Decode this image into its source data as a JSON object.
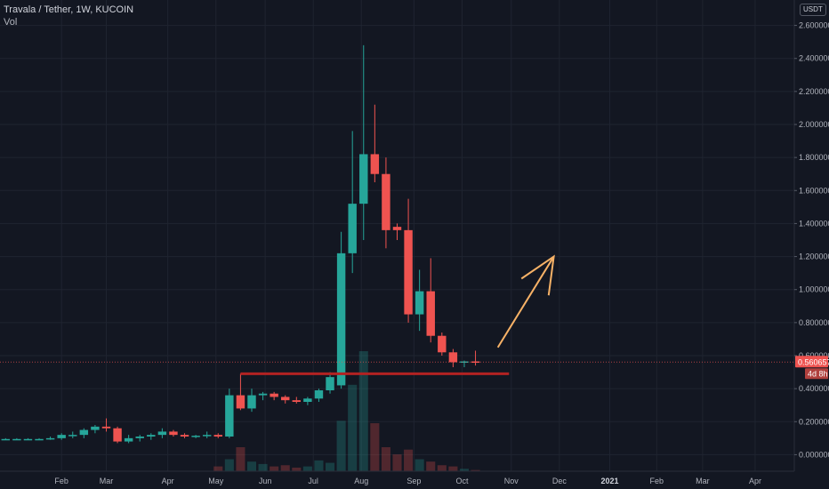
{
  "header": {
    "title": "Travala / Tether, 1W, KUCOIN",
    "vol_label": "Vol",
    "currency": "USDT"
  },
  "price_tag": {
    "price": "0.560657",
    "countdown": "4d 8h"
  },
  "colors": {
    "background": "#131722",
    "grid": "#1f2430",
    "up": "#26a69a",
    "down": "#ef5350",
    "support_line": "#b22222",
    "arrow": "#f7b267"
  },
  "chart_data": {
    "type": "candlestick",
    "y_axis": {
      "range": [
        -0.1,
        2.7
      ],
      "ticks": [
        0.0,
        0.2,
        0.4,
        0.6,
        0.8,
        1.0,
        1.2,
        1.4,
        1.6,
        1.8,
        2.0,
        2.2,
        2.4,
        2.6
      ],
      "tick_labels": [
        "0.000000",
        "0.200000",
        "0.400000",
        "0.600000",
        "0.800000",
        "1.000000",
        "1.200000",
        "1.400000",
        "1.600000",
        "1.800000",
        "2.000000",
        "2.200000",
        "2.400000",
        "2.600000"
      ]
    },
    "x_axis": {
      "range_weeks": [
        -3.5,
        67.5
      ],
      "ticks": [
        {
          "week": 2,
          "label": "Feb",
          "bold": false
        },
        {
          "week": 6,
          "label": "Mar",
          "bold": false
        },
        {
          "week": 11.5,
          "label": "Apr",
          "bold": false
        },
        {
          "week": 15.8,
          "label": "May",
          "bold": false
        },
        {
          "week": 20.2,
          "label": "Jun",
          "bold": false
        },
        {
          "week": 24.5,
          "label": "Jul",
          "bold": false
        },
        {
          "week": 28.8,
          "label": "Aug",
          "bold": false
        },
        {
          "week": 33.5,
          "label": "Sep",
          "bold": false
        },
        {
          "week": 37.8,
          "label": "Oct",
          "bold": false
        },
        {
          "week": 42.2,
          "label": "Nov",
          "bold": false
        },
        {
          "week": 46.5,
          "label": "Dec",
          "bold": false
        },
        {
          "week": 51,
          "label": "2021",
          "bold": true
        },
        {
          "week": 55.2,
          "label": "Feb",
          "bold": false
        },
        {
          "week": 59.3,
          "label": "Mar",
          "bold": false
        },
        {
          "week": 64,
          "label": "Apr",
          "bold": false
        }
      ]
    },
    "candles": [
      {
        "w": -3,
        "o": 0.095,
        "h": 0.1,
        "l": 0.09,
        "c": 0.095
      },
      {
        "w": -2,
        "o": 0.095,
        "h": 0.1,
        "l": 0.09,
        "c": 0.095
      },
      {
        "w": -1,
        "o": 0.095,
        "h": 0.1,
        "l": 0.09,
        "c": 0.095
      },
      {
        "w": 0,
        "o": 0.095,
        "h": 0.1,
        "l": 0.09,
        "c": 0.095
      },
      {
        "w": 1,
        "o": 0.095,
        "h": 0.11,
        "l": 0.09,
        "c": 0.1
      },
      {
        "w": 2,
        "o": 0.1,
        "h": 0.13,
        "l": 0.09,
        "c": 0.12
      },
      {
        "w": 3,
        "o": 0.12,
        "h": 0.14,
        "l": 0.1,
        "c": 0.12
      },
      {
        "w": 4,
        "o": 0.12,
        "h": 0.16,
        "l": 0.1,
        "c": 0.15
      },
      {
        "w": 5,
        "o": 0.15,
        "h": 0.18,
        "l": 0.13,
        "c": 0.17
      },
      {
        "w": 6,
        "o": 0.17,
        "h": 0.22,
        "l": 0.14,
        "c": 0.16
      },
      {
        "w": 7,
        "o": 0.16,
        "h": 0.17,
        "l": 0.07,
        "c": 0.08
      },
      {
        "w": 8,
        "o": 0.08,
        "h": 0.12,
        "l": 0.07,
        "c": 0.1
      },
      {
        "w": 9,
        "o": 0.1,
        "h": 0.12,
        "l": 0.08,
        "c": 0.11
      },
      {
        "w": 10,
        "o": 0.11,
        "h": 0.13,
        "l": 0.09,
        "c": 0.12
      },
      {
        "w": 11,
        "o": 0.12,
        "h": 0.16,
        "l": 0.1,
        "c": 0.14
      },
      {
        "w": 12,
        "o": 0.14,
        "h": 0.15,
        "l": 0.11,
        "c": 0.12
      },
      {
        "w": 13,
        "o": 0.12,
        "h": 0.13,
        "l": 0.1,
        "c": 0.11
      },
      {
        "w": 14,
        "o": 0.11,
        "h": 0.12,
        "l": 0.1,
        "c": 0.115
      },
      {
        "w": 15,
        "o": 0.115,
        "h": 0.14,
        "l": 0.1,
        "c": 0.12
      },
      {
        "w": 16,
        "o": 0.12,
        "h": 0.13,
        "l": 0.1,
        "c": 0.11
      },
      {
        "w": 17,
        "o": 0.11,
        "h": 0.4,
        "l": 0.1,
        "c": 0.36
      },
      {
        "w": 18,
        "o": 0.36,
        "h": 0.49,
        "l": 0.27,
        "c": 0.28
      },
      {
        "w": 19,
        "o": 0.28,
        "h": 0.4,
        "l": 0.26,
        "c": 0.36
      },
      {
        "w": 20,
        "o": 0.36,
        "h": 0.38,
        "l": 0.33,
        "c": 0.37
      },
      {
        "w": 21,
        "o": 0.37,
        "h": 0.38,
        "l": 0.33,
        "c": 0.35
      },
      {
        "w": 22,
        "o": 0.35,
        "h": 0.36,
        "l": 0.31,
        "c": 0.33
      },
      {
        "w": 23,
        "o": 0.33,
        "h": 0.35,
        "l": 0.31,
        "c": 0.32
      },
      {
        "w": 24,
        "o": 0.32,
        "h": 0.35,
        "l": 0.3,
        "c": 0.34
      },
      {
        "w": 25,
        "o": 0.34,
        "h": 0.4,
        "l": 0.32,
        "c": 0.39
      },
      {
        "w": 26,
        "o": 0.39,
        "h": 0.5,
        "l": 0.37,
        "c": 0.47
      },
      {
        "w": 27,
        "o": 0.42,
        "h": 1.35,
        "l": 0.4,
        "c": 1.22
      },
      {
        "w": 28,
        "o": 1.22,
        "h": 1.96,
        "l": 1.1,
        "c": 1.52
      },
      {
        "w": 29,
        "o": 1.52,
        "h": 2.48,
        "l": 1.3,
        "c": 1.82
      },
      {
        "w": 30,
        "o": 1.82,
        "h": 2.12,
        "l": 1.65,
        "c": 1.7
      },
      {
        "w": 31,
        "o": 1.7,
        "h": 1.8,
        "l": 1.25,
        "c": 1.36
      },
      {
        "w": 32,
        "o": 1.38,
        "h": 1.4,
        "l": 1.3,
        "c": 1.36
      },
      {
        "w": 33,
        "o": 1.36,
        "h": 1.55,
        "l": 0.8,
        "c": 0.85
      },
      {
        "w": 34,
        "o": 0.85,
        "h": 1.12,
        "l": 0.75,
        "c": 0.99
      },
      {
        "w": 35,
        "o": 0.99,
        "h": 1.19,
        "l": 0.68,
        "c": 0.72
      },
      {
        "w": 36,
        "o": 0.72,
        "h": 0.74,
        "l": 0.6,
        "c": 0.62
      },
      {
        "w": 37,
        "o": 0.62,
        "h": 0.64,
        "l": 0.53,
        "c": 0.56
      },
      {
        "w": 38,
        "o": 0.56,
        "h": 0.57,
        "l": 0.53,
        "c": 0.565
      },
      {
        "w": 39,
        "o": 0.565,
        "h": 0.63,
        "l": 0.54,
        "c": 0.560657
      }
    ],
    "volume": [
      {
        "w": 16,
        "v": 0.04,
        "up": false
      },
      {
        "w": 17,
        "v": 0.1,
        "up": true
      },
      {
        "w": 18,
        "v": 0.2,
        "up": false
      },
      {
        "w": 19,
        "v": 0.08,
        "up": true
      },
      {
        "w": 20,
        "v": 0.06,
        "up": true
      },
      {
        "w": 21,
        "v": 0.04,
        "up": false
      },
      {
        "w": 22,
        "v": 0.05,
        "up": false
      },
      {
        "w": 23,
        "v": 0.03,
        "up": false
      },
      {
        "w": 24,
        "v": 0.04,
        "up": true
      },
      {
        "w": 25,
        "v": 0.09,
        "up": true
      },
      {
        "w": 26,
        "v": 0.07,
        "up": true
      },
      {
        "w": 27,
        "v": 0.42,
        "up": true
      },
      {
        "w": 28,
        "v": 0.72,
        "up": true
      },
      {
        "w": 29,
        "v": 1.0,
        "up": true
      },
      {
        "w": 30,
        "v": 0.4,
        "up": false
      },
      {
        "w": 31,
        "v": 0.2,
        "up": false
      },
      {
        "w": 32,
        "v": 0.14,
        "up": false
      },
      {
        "w": 33,
        "v": 0.18,
        "up": false
      },
      {
        "w": 34,
        "v": 0.1,
        "up": true
      },
      {
        "w": 35,
        "v": 0.08,
        "up": false
      },
      {
        "w": 36,
        "v": 0.05,
        "up": false
      },
      {
        "w": 37,
        "v": 0.04,
        "up": false
      },
      {
        "w": 38,
        "v": 0.02,
        "up": true
      },
      {
        "w": 39,
        "v": 0.01,
        "up": false
      }
    ],
    "annotations": {
      "support_line": {
        "price": 0.49,
        "from_week": 18,
        "to_week": 42
      },
      "arrow": {
        "from": {
          "w": 41,
          "p": 0.65
        },
        "to": {
          "w": 46,
          "p": 1.2
        }
      }
    },
    "last_price": 0.560657
  }
}
